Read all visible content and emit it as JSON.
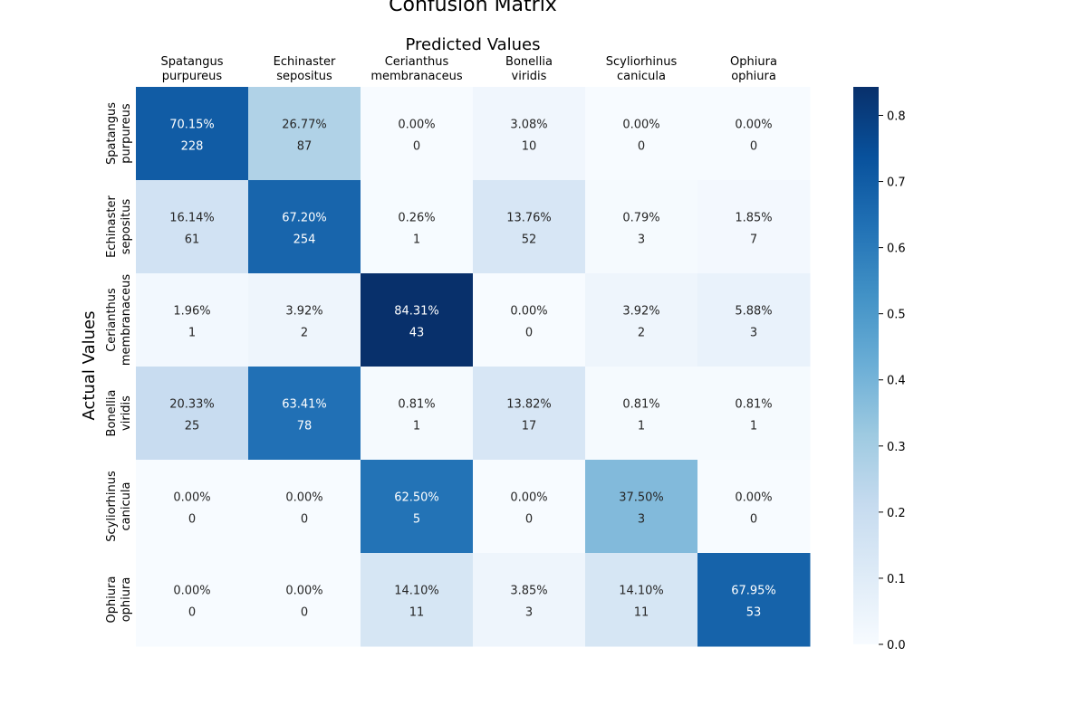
{
  "chart_data": {
    "type": "heatmap",
    "title": "Confusion Matrix",
    "xlabel": "Predicted Values",
    "ylabel": "Actual Values",
    "categories": [
      [
        "Spatangus",
        "purpureus"
      ],
      [
        "Echinaster",
        "sepositus"
      ],
      [
        "Cerianthus",
        "membranaceus"
      ],
      [
        "Bonellia",
        "viridis"
      ],
      [
        "Scyliorhinus",
        "canicula"
      ],
      [
        "Ophiura",
        "ophiura"
      ]
    ],
    "percent_labels": [
      [
        "70.15%",
        "26.77%",
        "0.00%",
        "3.08%",
        "0.00%",
        "0.00%"
      ],
      [
        "16.14%",
        "67.20%",
        "0.26%",
        "13.76%",
        "0.79%",
        "1.85%"
      ],
      [
        "1.96%",
        "3.92%",
        "84.31%",
        "0.00%",
        "3.92%",
        "5.88%"
      ],
      [
        "20.33%",
        "63.41%",
        "0.81%",
        "13.82%",
        "0.81%",
        "0.81%"
      ],
      [
        "0.00%",
        "0.00%",
        "62.50%",
        "0.00%",
        "37.50%",
        "0.00%"
      ],
      [
        "0.00%",
        "0.00%",
        "14.10%",
        "3.85%",
        "14.10%",
        "67.95%"
      ]
    ],
    "values": [
      [
        0.7015,
        0.2677,
        0.0,
        0.0308,
        0.0,
        0.0
      ],
      [
        0.1614,
        0.672,
        0.0026,
        0.1376,
        0.0079,
        0.0185
      ],
      [
        0.0196,
        0.0392,
        0.8431,
        0.0,
        0.0392,
        0.0588
      ],
      [
        0.2033,
        0.6341,
        0.0081,
        0.1382,
        0.0081,
        0.0081
      ],
      [
        0.0,
        0.0,
        0.625,
        0.0,
        0.375,
        0.0
      ],
      [
        0.0,
        0.0,
        0.141,
        0.0385,
        0.141,
        0.6795
      ]
    ],
    "counts": [
      [
        228,
        87,
        0,
        10,
        0,
        0
      ],
      [
        61,
        254,
        1,
        52,
        3,
        7
      ],
      [
        1,
        2,
        43,
        0,
        2,
        3
      ],
      [
        25,
        78,
        1,
        17,
        1,
        1
      ],
      [
        0,
        0,
        5,
        0,
        3,
        0
      ],
      [
        0,
        0,
        11,
        3,
        11,
        53
      ]
    ],
    "colorbar": {
      "range": [
        0.0,
        0.8431
      ],
      "ticks": [
        "0.0",
        "0.1",
        "0.2",
        "0.3",
        "0.4",
        "0.5",
        "0.6",
        "0.7",
        "0.8"
      ],
      "colormap": "Blues"
    }
  }
}
